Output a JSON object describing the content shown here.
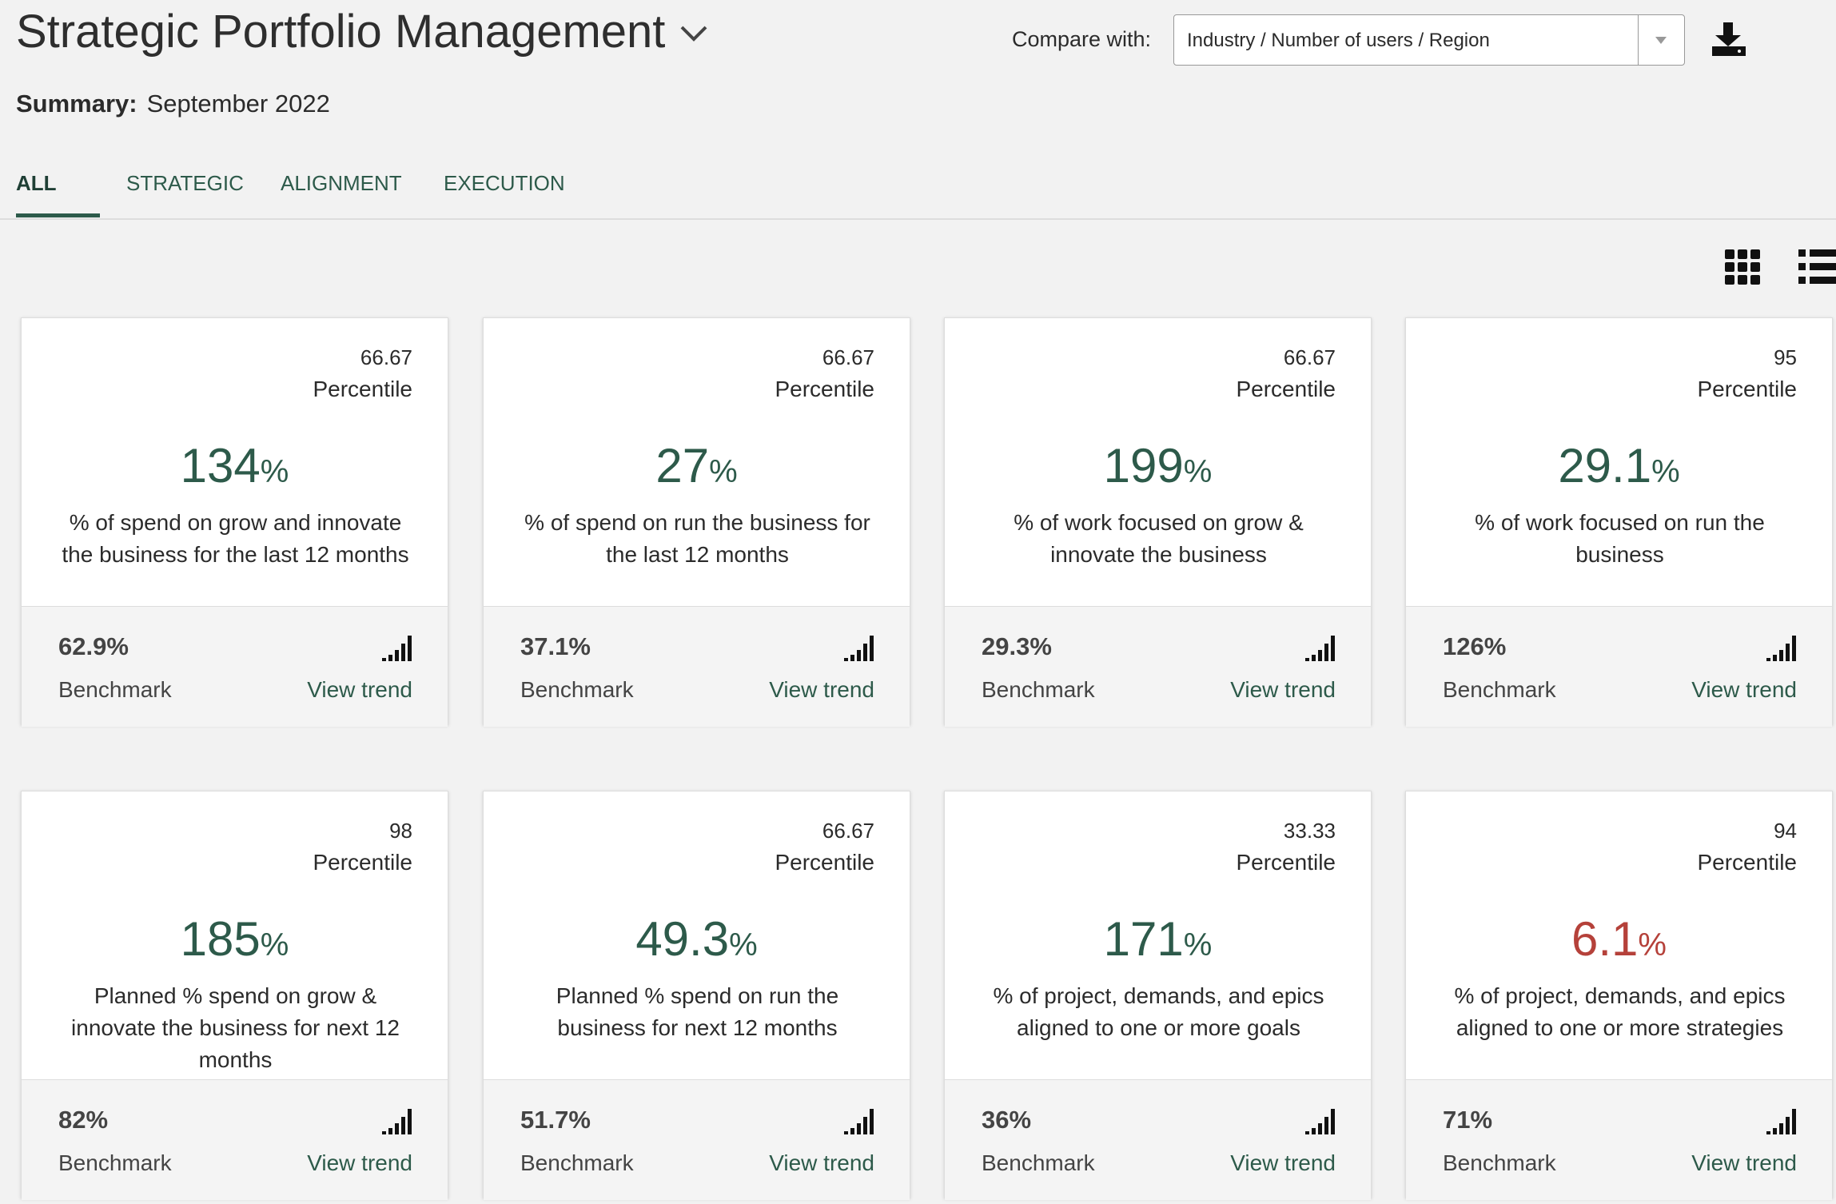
{
  "header": {
    "title": "Strategic Portfolio Management",
    "compare_label": "Compare with:",
    "compare_value": "Industry / Number of users / Region",
    "summary_label": "Summary:",
    "summary_value": "September 2022"
  },
  "tabs": [
    "ALL",
    "STRATEGIC",
    "ALIGNMENT",
    "EXECUTION"
  ],
  "cards": [
    {
      "percentile": "66.67",
      "percentile_label": "Percentile",
      "value": "134",
      "unit": "%",
      "color": "#2d5a4a",
      "description": "% of spend on grow and innovate the business for the last 12 months",
      "benchmark": "62.9%",
      "benchmark_label": "Benchmark",
      "trend": "View trend"
    },
    {
      "percentile": "66.67",
      "percentile_label": "Percentile",
      "value": "27",
      "unit": "%",
      "color": "#2d5a4a",
      "description": "% of spend on run the business for the last 12 months",
      "benchmark": "37.1%",
      "benchmark_label": "Benchmark",
      "trend": "View trend"
    },
    {
      "percentile": "66.67",
      "percentile_label": "Percentile",
      "value": "199",
      "unit": "%",
      "color": "#2d5a4a",
      "description": "% of work focused on grow & innovate the business",
      "benchmark": "29.3%",
      "benchmark_label": "Benchmark",
      "trend": "View trend"
    },
    {
      "percentile": "95",
      "percentile_label": "Percentile",
      "value": "29.1",
      "unit": "%",
      "color": "#2d5a4a",
      "description": "% of work focused on run the business",
      "benchmark": "126%",
      "benchmark_label": "Benchmark",
      "trend": "View trend"
    },
    {
      "percentile": "98",
      "percentile_label": "Percentile",
      "value": "185",
      "unit": "%",
      "color": "#2d5a4a",
      "description": "Planned % spend on grow & innovate the business for next 12 months",
      "benchmark": "82%",
      "benchmark_label": "Benchmark",
      "trend": "View trend"
    },
    {
      "percentile": "66.67",
      "percentile_label": "Percentile",
      "value": "49.3",
      "unit": "%",
      "color": "#2d5a4a",
      "description": "Planned % spend on run the business for next 12 months",
      "benchmark": "51.7%",
      "benchmark_label": "Benchmark",
      "trend": "View trend"
    },
    {
      "percentile": "33.33",
      "percentile_label": "Percentile",
      "value": "171",
      "unit": "%",
      "color": "#2d5a4a",
      "description": "% of project, demands, and epics aligned to one or more goals",
      "benchmark": "36%",
      "benchmark_label": "Benchmark",
      "trend": "View trend"
    },
    {
      "percentile": "94",
      "percentile_label": "Percentile",
      "value": "6.1",
      "unit": "%",
      "color": "#b5413a",
      "description": "% of project, demands, and epics aligned to one or more strategies",
      "benchmark": "71%",
      "benchmark_label": "Benchmark",
      "trend": "View trend"
    }
  ]
}
